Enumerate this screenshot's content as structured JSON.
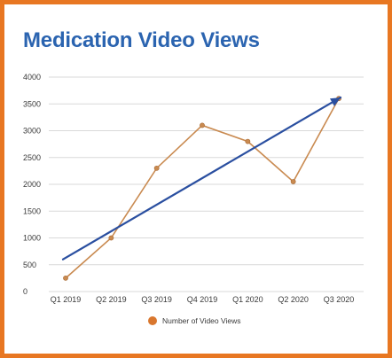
{
  "chart_data": {
    "type": "line",
    "title": "Medication Video Views",
    "categories": [
      "Q1 2019",
      "Q2 2019",
      "Q3 2019",
      "Q4 2019",
      "Q1 2020",
      "Q2 2020",
      "Q3 2020"
    ],
    "series": [
      {
        "name": "Number of Video Views",
        "values": [
          250,
          1000,
          2300,
          3100,
          2800,
          2050,
          3600
        ]
      }
    ],
    "trend_arrow": {
      "from_value": 600,
      "to_value": 3620
    },
    "ylim": [
      0,
      4000
    ],
    "yticks": [
      0,
      500,
      1000,
      1500,
      2000,
      2500,
      3000,
      3500,
      4000
    ],
    "grid": true,
    "legend_position": "bottom",
    "colors": {
      "series": "#c98a50",
      "marker": "#d9772e",
      "trend": "#2a4fa0",
      "title": "#2b64b0",
      "frame": "#e87722",
      "grid": "#d9d9d9"
    }
  }
}
